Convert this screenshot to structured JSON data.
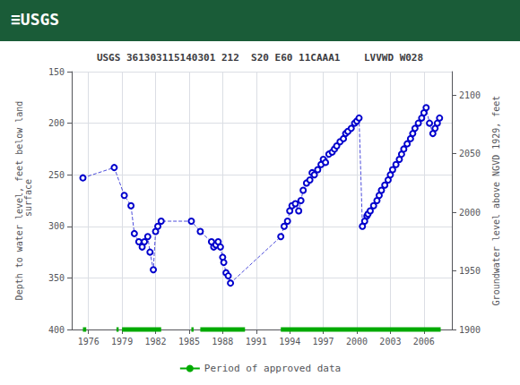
{
  "chart_data": {
    "type": "line",
    "title": "USGS 361303115140301 212  S20 E60 11CAAA1    LVVWD W028",
    "annotations": [
      {
        "text": "≡USGS",
        "color": "#ffffff",
        "background": "#1a5c38"
      }
    ],
    "ylabel": "Depth to water level, feet below land\n surface",
    "y2label": "Groundwater level above NGVD 1929, feet",
    "xlim": [
      1974.5,
      2008.5
    ],
    "xticks": [
      1976,
      1979,
      1982,
      1985,
      1988,
      1991,
      1994,
      1997,
      2000,
      2003,
      2006
    ],
    "ylim": [
      400,
      150
    ],
    "yticks": [
      150,
      200,
      250,
      300,
      350,
      400
    ],
    "y2lim": [
      1900,
      2120
    ],
    "y2ticks": [
      1900,
      1950,
      2000,
      2050,
      2100
    ],
    "grid": true,
    "legend": "bottom",
    "series": [
      {
        "type": "line",
        "color": "#0000cc",
        "marker": "open_circle",
        "line_style": "dashed",
        "x": [
          1975.5,
          1978.3,
          1979.2,
          1979.8,
          1980.1,
          1980.5,
          1980.8,
          1981.0,
          1981.3,
          1981.5,
          1981.8,
          1982.0,
          1982.2,
          1982.5,
          1985.2,
          1986.0,
          1987.0,
          1987.2,
          1987.4,
          1987.6,
          1987.8,
          1988.0,
          1988.1,
          1988.3,
          1988.5,
          1988.7,
          1993.2,
          1993.5,
          1993.8,
          1994.0,
          1994.2,
          1994.5,
          1994.8,
          1995.0,
          1995.2,
          1995.5,
          1995.8,
          1996.0,
          1996.2,
          1996.5,
          1996.8,
          1997.0,
          1997.2,
          1997.5,
          1997.8,
          1998.0,
          1998.2,
          1998.5,
          1998.8,
          1999.0,
          1999.2,
          1999.5,
          1999.8,
          2000.0,
          2000.2,
          2000.5,
          2000.7,
          2000.9,
          2001.0,
          2001.2,
          2001.5,
          2001.8,
          2002.0,
          2002.2,
          2002.5,
          2002.8,
          2003.0,
          2003.2,
          2003.5,
          2003.8,
          2004.0,
          2004.2,
          2004.5,
          2004.8,
          2005.0,
          2005.2,
          2005.5,
          2005.8,
          2006.0,
          2006.2,
          2006.5,
          2006.8,
          2007.0,
          2007.2,
          2007.4
        ],
        "values": [
          253,
          243,
          270,
          280,
          307,
          315,
          320,
          315,
          310,
          325,
          342,
          305,
          300,
          295,
          295,
          305,
          315,
          320,
          318,
          315,
          320,
          330,
          335,
          345,
          348,
          355,
          310,
          300,
          295,
          285,
          280,
          278,
          285,
          275,
          265,
          258,
          255,
          248,
          250,
          245,
          240,
          235,
          238,
          230,
          228,
          225,
          222,
          218,
          215,
          210,
          208,
          205,
          200,
          198,
          195,
          300,
          295,
          290,
          288,
          285,
          280,
          275,
          270,
          265,
          260,
          255,
          250,
          245,
          240,
          235,
          230,
          225,
          220,
          215,
          210,
          205,
          200,
          195,
          190,
          185,
          200,
          210,
          205,
          200,
          195
        ]
      },
      {
        "name": "Period of approved data",
        "type": "line",
        "color": "#00aa00",
        "line_style": "solid",
        "x": [
          1975.5,
          1975.8,
          null,
          1978.5,
          1978.7,
          null,
          1979.0,
          1982.5,
          null,
          1985.2,
          1985.4,
          null,
          1986.0,
          1990.0,
          null,
          1993.2,
          2007.5
        ],
        "values": [
          400,
          400,
          null,
          400,
          400,
          null,
          400,
          400,
          null,
          400,
          400,
          null,
          400,
          400,
          null,
          400,
          400
        ]
      }
    ]
  }
}
